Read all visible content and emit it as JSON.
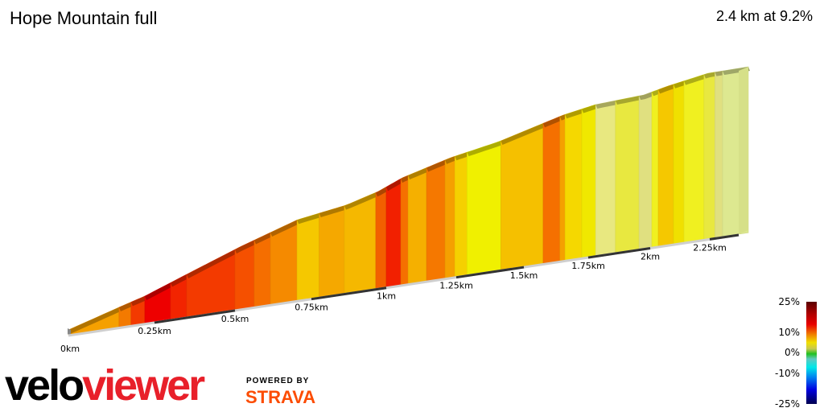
{
  "header": {
    "title": "Hope Mountain full",
    "summary": "2.4 km at 9.2%"
  },
  "chart_data": {
    "type": "area",
    "title": "Hope Mountain full",
    "x_unit": "km",
    "xlim": [
      0,
      2.4
    ],
    "x_ticks": [
      {
        "km": 0,
        "label": "0km"
      },
      {
        "km": 0.25,
        "label": "0.25km"
      },
      {
        "km": 0.5,
        "label": "0.5km"
      },
      {
        "km": 0.75,
        "label": "0.75km"
      },
      {
        "km": 1,
        "label": "1km"
      },
      {
        "km": 1.25,
        "label": "1.25km"
      },
      {
        "km": 1.5,
        "label": "1.5km"
      },
      {
        "km": 1.75,
        "label": "1.75km"
      },
      {
        "km": 2,
        "label": "2km"
      },
      {
        "km": 2.25,
        "label": "2.25km"
      }
    ],
    "segments": [
      {
        "from": 0,
        "to": 0.147,
        "color": "#f5a000"
      },
      {
        "from": 0.147,
        "to": 0.182,
        "color": "#f37a00"
      },
      {
        "from": 0.182,
        "to": 0.222,
        "color": "#f33a00"
      },
      {
        "from": 0.222,
        "to": 0.3,
        "color": "#ee0000"
      },
      {
        "from": 0.3,
        "to": 0.35,
        "color": "#f22400"
      },
      {
        "from": 0.35,
        "to": 0.5,
        "color": "#f33a00"
      },
      {
        "from": 0.5,
        "to": 0.563,
        "color": "#f55000"
      },
      {
        "from": 0.563,
        "to": 0.616,
        "color": "#f56e00"
      },
      {
        "from": 0.616,
        "to": 0.703,
        "color": "#f58a00"
      },
      {
        "from": 0.703,
        "to": 0.776,
        "color": "#f5c800"
      },
      {
        "from": 0.776,
        "to": 0.86,
        "color": "#f5a800"
      },
      {
        "from": 0.86,
        "to": 0.965,
        "color": "#f5b800"
      },
      {
        "from": 0.965,
        "to": 1.0,
        "color": "#f26000"
      },
      {
        "from": 1.0,
        "to": 1.052,
        "color": "#f22000"
      },
      {
        "from": 1.052,
        "to": 1.078,
        "color": "#f57000"
      },
      {
        "from": 1.078,
        "to": 1.144,
        "color": "#f5b000"
      },
      {
        "from": 1.144,
        "to": 1.21,
        "color": "#f57800"
      },
      {
        "from": 1.21,
        "to": 1.245,
        "color": "#f5a000"
      },
      {
        "from": 1.245,
        "to": 1.29,
        "color": "#f5d000"
      },
      {
        "from": 1.29,
        "to": 1.415,
        "color": "#f0f000"
      },
      {
        "from": 1.415,
        "to": 1.575,
        "color": "#f5c000"
      },
      {
        "from": 1.575,
        "to": 1.64,
        "color": "#f57000"
      },
      {
        "from": 1.64,
        "to": 1.66,
        "color": "#f5a000"
      },
      {
        "from": 1.66,
        "to": 1.725,
        "color": "#f5d800"
      },
      {
        "from": 1.725,
        "to": 1.78,
        "color": "#f0e800"
      },
      {
        "from": 1.78,
        "to": 1.86,
        "color": "#e8e880"
      },
      {
        "from": 1.86,
        "to": 1.955,
        "color": "#e8e840"
      },
      {
        "from": 1.955,
        "to": 2.007,
        "color": "#e0e080"
      },
      {
        "from": 2.007,
        "to": 2.034,
        "color": "#f0f020"
      },
      {
        "from": 2.034,
        "to": 2.098,
        "color": "#f5c800"
      },
      {
        "from": 2.098,
        "to": 2.142,
        "color": "#f0e000"
      },
      {
        "from": 2.142,
        "to": 2.226,
        "color": "#f0f020"
      },
      {
        "from": 2.226,
        "to": 2.27,
        "color": "#e8e840"
      },
      {
        "from": 2.27,
        "to": 2.3,
        "color": "#e0e080"
      },
      {
        "from": 2.3,
        "to": 2.4,
        "color": "#dde890"
      }
    ]
  },
  "legend": {
    "labels": [
      "25%",
      "10%",
      "0%",
      "-10%",
      "-25%"
    ],
    "colors": [
      "#5a0000",
      "#e80000",
      "#f0e000",
      "#20c020",
      "#00e8e8",
      "#0000e0",
      "#000050"
    ]
  },
  "branding": {
    "logo_part1": "velo",
    "logo_part2": "viewer",
    "powered_by": "POWERED BY",
    "strava": "STRAVA"
  }
}
